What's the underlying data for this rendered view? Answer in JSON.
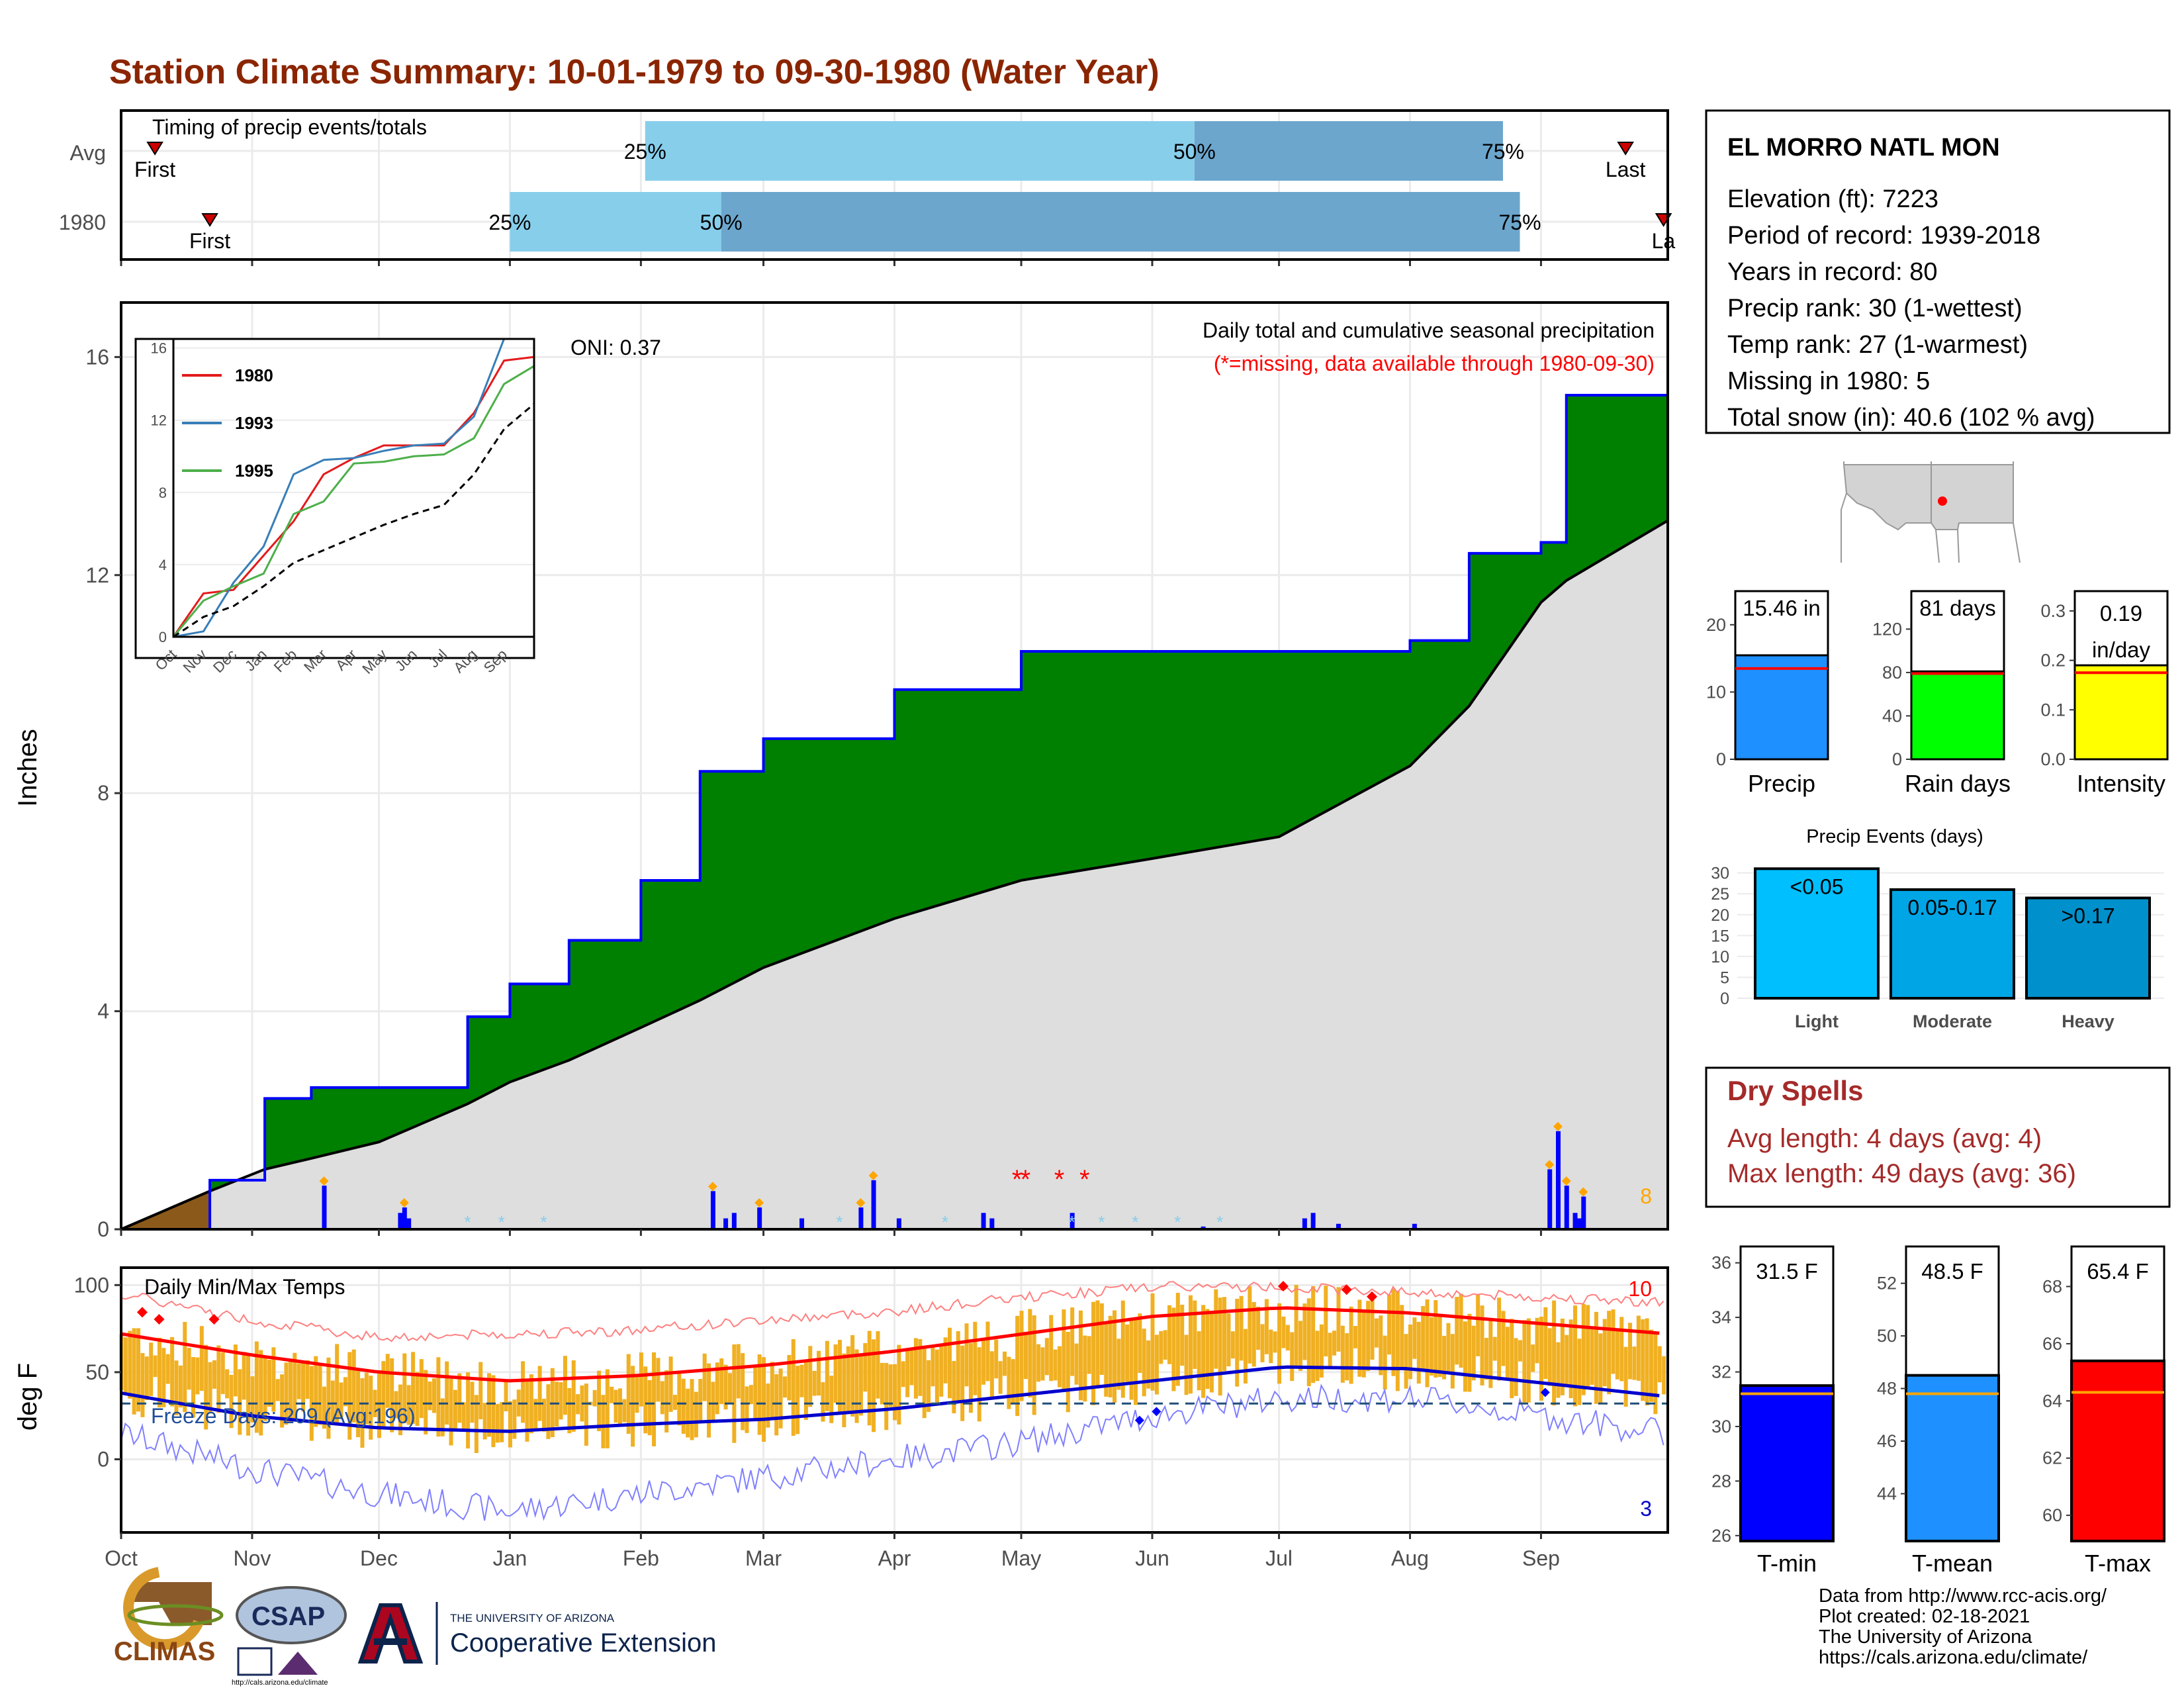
{
  "title": "Station Climate Summary: 10-01-1979 to 09-30-1980 (Water Year)",
  "colors": {
    "title": "#8b2500",
    "precip_fill": "#008000",
    "normal_fill": "#dedede",
    "bar_blue": "#0000ff",
    "temp_bars": "#f0b022",
    "dry": "#a52a2a"
  },
  "timing": {
    "label": "Timing of precip events/totals",
    "rows": [
      {
        "name": "Avg",
        "first": "First",
        "last": "Last",
        "q25": "25%",
        "q50": "50%",
        "q75": "75%",
        "q25_day": 124,
        "q50_day": 254,
        "q75_day": 327,
        "first_day": 8,
        "last_day": 356
      },
      {
        "name": "1980",
        "first": "First",
        "last": "La",
        "q25": "25%",
        "q50": "50%",
        "q75": "75%",
        "q25_day": 92,
        "q50_day": 142,
        "q75_day": 331,
        "first_day": 21,
        "last_day": 365
      }
    ]
  },
  "main": {
    "ylabel": "Inches",
    "oni": "ONI: 0.37",
    "subtitle": "Daily total and cumulative seasonal precipitation",
    "missing_note": "(*=missing, data available through 1980-09-30)",
    "count_label": "8",
    "yticks": [
      "0",
      "4",
      "8",
      "12",
      "16"
    ],
    "months": [
      "Oct",
      "Nov",
      "Dec",
      "Jan",
      "Feb",
      "Mar",
      "Apr",
      "May",
      "Jun",
      "Jul",
      "Aug",
      "Sep"
    ]
  },
  "inset": {
    "yticks": [
      "0",
      "4",
      "8",
      "12",
      "16"
    ],
    "months": [
      "Oct",
      "Nov",
      "Dec",
      "Jan",
      "Feb",
      "Mar",
      "Apr",
      "May",
      "Jun",
      "Jul",
      "Aug",
      "Sep"
    ],
    "legend": [
      "1980",
      "1993",
      "1995"
    ],
    "legend_colors": [
      "#e41a1c",
      "#377eb8",
      "#4daf4a"
    ]
  },
  "temps": {
    "ylabel": "deg F",
    "label": "Daily Min/Max Temps",
    "freeze": "Freeze Days: 209 (Avg:196)",
    "count_hi": "10",
    "count_lo": "3",
    "yticks": [
      "0",
      "50",
      "100"
    ]
  },
  "station": {
    "name": "EL MORRO NATL MON",
    "lines": [
      "Elevation (ft): 7223",
      "Period of record: 1939-2018",
      "Years in record: 80",
      "Precip rank: 30 (1-wettest)",
      "Temp rank: 27 (1-warmest)",
      "Missing in 1980: 5",
      "Total snow (in): 40.6 (102 % avg)"
    ]
  },
  "small_bars": [
    {
      "label": "Precip",
      "value_text": "15.46 in",
      "value": 15.46,
      "avg": 13.5,
      "ymax": 25,
      "ticks": [
        "0",
        "10",
        "20"
      ],
      "tickvals": [
        0,
        10,
        20
      ],
      "color": "#1e90ff"
    },
    {
      "label": "Rain days",
      "value_text": "81 days",
      "value": 81,
      "avg": 79,
      "ymax": 155,
      "ticks": [
        "0",
        "40",
        "80",
        "120"
      ],
      "tickvals": [
        0,
        40,
        80,
        120
      ],
      "color": "#00ff00"
    },
    {
      "label": "Intensity",
      "value_text": "0.19 in/day",
      "value_line1": "0.19",
      "value_line2": "in/day",
      "value": 0.19,
      "avg": 0.175,
      "ymax": 0.34,
      "ticks": [
        "0.0",
        "0.1",
        "0.2",
        "0.3"
      ],
      "tickvals": [
        0,
        0.1,
        0.2,
        0.3
      ],
      "color": "#ffff00"
    }
  ],
  "events": {
    "title": "Precip Events (days)",
    "ticks": [
      "0",
      "5",
      "10",
      "15",
      "20",
      "25",
      "30"
    ],
    "bars": [
      {
        "cat": "Light",
        "label": "<0.05",
        "value": 31,
        "color": "#00bfff"
      },
      {
        "cat": "Moderate",
        "label": "0.05-0.17",
        "value": 26,
        "color": "#00a5e6"
      },
      {
        "cat": "Heavy",
        "label": ">0.17",
        "value": 24,
        "color": "#0090cc"
      }
    ]
  },
  "dry": {
    "title": "Dry Spells",
    "avg": "Avg length: 4 days (avg: 4)",
    "max": "Max length: 49 days (avg: 36)"
  },
  "temp_bars": [
    {
      "label": "T-min",
      "value_text": "31.5 F",
      "value": 31.5,
      "avg": 31.2,
      "ymin": 25.8,
      "ymax": 36.6,
      "ticks": [
        "26",
        "28",
        "30",
        "32",
        "34",
        "36"
      ],
      "tickvals": [
        26,
        28,
        30,
        32,
        34,
        36
      ],
      "color": "#0000ff"
    },
    {
      "label": "T-mean",
      "value_text": "48.5 F",
      "value": 48.5,
      "avg": 47.8,
      "ymin": 42.2,
      "ymax": 53.4,
      "ticks": [
        "44",
        "46",
        "48",
        "50",
        "52"
      ],
      "tickvals": [
        44,
        46,
        48,
        50,
        52
      ],
      "color": "#1e90ff"
    },
    {
      "label": "T-max",
      "value_text": "65.4 F",
      "value": 65.4,
      "avg": 64.3,
      "ymin": 59.1,
      "ymax": 69.4,
      "ticks": [
        "60",
        "62",
        "64",
        "66",
        "68"
      ],
      "tickvals": [
        60,
        62,
        64,
        66,
        68
      ],
      "color": "#ff0000"
    }
  ],
  "footer": {
    "credits": [
      "Data from http://www.rcc-acis.org/",
      "Plot created: 02-18-2021",
      "The University of Arizona",
      "https://cals.arizona.edu/climate/"
    ],
    "climas": "CLIMAS",
    "csap": "CSAP",
    "csap_url": "http://cals.arizona.edu/climate",
    "ua_small": "THE UNIVERSITY OF ARIZONA",
    "ua_big": "Cooperative Extension"
  },
  "chart_data": {
    "type": "area",
    "title": "Station Climate Summary: 10-01-1979 to 09-30-1980 (Water Year)",
    "ylabel": "Inches",
    "ylim": [
      0,
      17
    ],
    "x": [
      "Oct 1",
      "Oct 22",
      "Nov 4",
      "Nov 15",
      "Dec 1",
      "Dec 22",
      "Jan 1",
      "Jan 15",
      "Feb 1",
      "Feb 15",
      "Mar 1",
      "Apr 1",
      "May 1",
      "Jun 1",
      "Jul 1",
      "Aug 1",
      "Aug 15",
      "Sep 1",
      "Sep 7",
      "Sep 30"
    ],
    "series": [
      {
        "name": "1980",
        "values": [
          0.0,
          0.9,
          2.4,
          2.6,
          2.6,
          3.9,
          4.5,
          5.3,
          6.4,
          8.4,
          9.0,
          9.9,
          10.6,
          10.6,
          10.6,
          10.8,
          12.4,
          12.6,
          15.3,
          15.46
        ]
      },
      {
        "name": "Avg",
        "values": [
          0.0,
          0.7,
          1.1,
          1.3,
          1.6,
          2.3,
          2.7,
          3.1,
          3.7,
          4.2,
          4.8,
          5.7,
          6.4,
          6.8,
          7.2,
          8.5,
          9.6,
          11.5,
          11.9,
          13.0
        ]
      }
    ],
    "daily_precip": {
      "days": [
        48,
        66,
        67,
        68,
        140,
        143,
        145,
        151,
        161,
        175,
        178,
        184,
        204,
        206,
        225,
        256,
        280,
        282,
        288,
        306,
        338,
        340,
        342,
        344,
        345,
        346
      ],
      "inches": [
        0.8,
        0.3,
        0.4,
        0.2,
        0.7,
        0.2,
        0.3,
        0.4,
        0.2,
        0.4,
        0.9,
        0.2,
        0.3,
        0.2,
        0.3,
        0.05,
        0.2,
        0.3,
        0.1,
        0.1,
        1.1,
        1.8,
        0.8,
        0.3,
        0.2,
        0.6
      ]
    },
    "inset": {
      "type": "line",
      "ylim": [
        0,
        16.5
      ],
      "series": [
        {
          "name": "1980",
          "values": [
            0.0,
            2.4,
            2.6,
            4.5,
            6.4,
            9.0,
            9.9,
            10.6,
            10.6,
            10.6,
            12.4,
            15.3,
            15.5
          ]
        },
        {
          "name": "1993",
          "values": [
            0.0,
            0.3,
            3.0,
            5.0,
            9.0,
            9.8,
            9.9,
            10.3,
            10.6,
            10.7,
            12.2,
            16.5,
            16.5
          ]
        },
        {
          "name": "1995",
          "values": [
            0.0,
            2.0,
            2.8,
            3.5,
            6.8,
            7.5,
            9.6,
            9.7,
            10.0,
            10.1,
            11.0,
            14.0,
            15.0
          ]
        }
      ]
    },
    "temperature": {
      "ylim": [
        -40,
        110
      ],
      "months": [
        "Oct",
        "Nov",
        "Dec",
        "Jan",
        "Feb",
        "Mar",
        "Apr",
        "May",
        "Jun",
        "Jul",
        "Aug",
        "Sep"
      ],
      "avg_max": [
        72,
        60,
        50,
        45,
        48,
        54,
        62,
        72,
        82,
        87,
        84,
        78
      ],
      "avg_min": [
        38,
        25,
        18,
        16,
        20,
        23,
        29,
        37,
        45,
        53,
        52,
        44
      ],
      "record_max": [
        95,
        80,
        70,
        72,
        74,
        80,
        85,
        93,
        99,
        99,
        96,
        93
      ],
      "record_min": [
        15,
        -5,
        -20,
        -30,
        -20,
        -10,
        0,
        10,
        25,
        35,
        35,
        25
      ],
      "freeze_line": 32
    }
  }
}
